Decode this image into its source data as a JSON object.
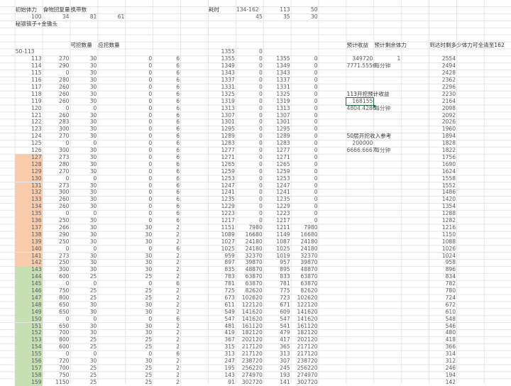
{
  "top": {
    "labels": [
      "初始体力",
      "食物回复量",
      "携带数"
    ],
    "values": [
      "100",
      "34",
      "81",
      "61"
    ],
    "tool": "秘银镐子+金锄头",
    "time_label": "耗时",
    "time_header": [
      "134-162",
      "113",
      "50"
    ],
    "time_values": [
      "45",
      "35",
      "30"
    ]
  },
  "headers": {
    "mineable": "可挖数量",
    "should_mine": "应挖数量",
    "range_label": "50-113",
    "range_stamina": "1355",
    "range_income": "0",
    "expected_income": "预计收益",
    "expected_stamina": "预计剩余体力",
    "full_clear": "到达时剩多少体力可全清至162"
  },
  "notes": {
    "income_total": "349720",
    "stamina_flag": "1",
    "income_rate": "7771.5556",
    "per_minute": "每分钟",
    "start113_label": "113开挖预计收益",
    "start113_value": "168155",
    "start113_rate": "4804.4286",
    "start50_label": "50层开挖收入参考",
    "start50_value": "200000",
    "start50_rate": "6666.6667"
  },
  "colors": {
    "orange_band": "#f8cbad",
    "green_band": "#c6e0b4",
    "selection": "#217346"
  },
  "rows": [
    [
      "113",
      "270",
      "30",
      "0",
      "6",
      "1355",
      "0",
      "1355",
      "0",
      "2554"
    ],
    [
      "114",
      "290",
      "30",
      "0",
      "6",
      "1349",
      "0",
      "1349",
      "0",
      "2494"
    ],
    [
      "115",
      "0",
      "30",
      "0",
      "6",
      "1343",
      "0",
      "1343",
      "0",
      "2428"
    ],
    [
      "116",
      "280",
      "30",
      "0",
      "6",
      "1337",
      "0",
      "1337",
      "0",
      "2362"
    ],
    [
      "117",
      "260",
      "30",
      "0",
      "6",
      "1331",
      "0",
      "1331",
      "0",
      "2296"
    ],
    [
      "118",
      "260",
      "30",
      "0",
      "6",
      "1325",
      "0",
      "1325",
      "0",
      "2230"
    ],
    [
      "119",
      "260",
      "30",
      "0",
      "6",
      "1319",
      "0",
      "1319",
      "0",
      "2164"
    ],
    [
      "120",
      "0",
      "0",
      "0",
      "6",
      "1313",
      "0",
      "1313",
      "0",
      "2098"
    ],
    [
      "121",
      "260",
      "30",
      "0",
      "6",
      "1307",
      "0",
      "1307",
      "0",
      "2092"
    ],
    [
      "122",
      "283",
      "30",
      "0",
      "6",
      "1301",
      "0",
      "1301",
      "0",
      "2026"
    ],
    [
      "123",
      "300",
      "30",
      "0",
      "6",
      "1295",
      "0",
      "1295",
      "0",
      "1960"
    ],
    [
      "124",
      "270",
      "30",
      "0",
      "6",
      "1289",
      "0",
      "1289",
      "0",
      "1894"
    ],
    [
      "125",
      "0",
      "0",
      "0",
      "6",
      "1283",
      "0",
      "1283",
      "0",
      "1828"
    ],
    [
      "126",
      "300",
      "30",
      "0",
      "6",
      "1277",
      "0",
      "1277",
      "0",
      "1822"
    ],
    [
      "127",
      "273",
      "30",
      "0",
      "6",
      "1271",
      "0",
      "1271",
      "0",
      "1756"
    ],
    [
      "128",
      "280",
      "30",
      "0",
      "6",
      "1265",
      "0",
      "1265",
      "0",
      "1690"
    ],
    [
      "129",
      "270",
      "30",
      "0",
      "6",
      "1259",
      "0",
      "1259",
      "0",
      "1624"
    ],
    [
      "130",
      "0",
      "0",
      "0",
      "6",
      "1253",
      "0",
      "1253",
      "0",
      "1558"
    ],
    [
      "131",
      "273",
      "30",
      "0",
      "6",
      "1247",
      "0",
      "1247",
      "0",
      "1552"
    ],
    [
      "132",
      "300",
      "30",
      "0",
      "6",
      "1241",
      "0",
      "1241",
      "0",
      "1486"
    ],
    [
      "133",
      "260",
      "30",
      "0",
      "6",
      "1235",
      "0",
      "1235",
      "0",
      "1420"
    ],
    [
      "134",
      "260",
      "30",
      "0",
      "6",
      "1229",
      "0",
      "1229",
      "0",
      "1354"
    ],
    [
      "135",
      "0",
      "0",
      "0",
      "6",
      "1223",
      "0",
      "1223",
      "0",
      "1288"
    ],
    [
      "136",
      "250",
      "30",
      "0",
      "6",
      "1217",
      "0",
      "1217",
      "0",
      "1282"
    ],
    [
      "137",
      "266",
      "30",
      "30",
      "2",
      "1151",
      "7980",
      "1211",
      "7980",
      "1216"
    ],
    [
      "138",
      "290",
      "30",
      "30",
      "2",
      "1089",
      "16680",
      "1149",
      "16680",
      "1150"
    ],
    [
      "139",
      "250",
      "30",
      "30",
      "2",
      "1027",
      "24180",
      "1087",
      "24180",
      "1088"
    ],
    [
      "140",
      "0",
      "0",
      "0",
      "6",
      "1025",
      "24180",
      "1025",
      "24180",
      "1026"
    ],
    [
      "141",
      "273",
      "30",
      "30",
      "2",
      "959",
      "32370",
      "1019",
      "32370",
      "1024"
    ],
    [
      "142",
      "250",
      "30",
      "30",
      "2",
      "897",
      "39870",
      "957",
      "39870",
      "958"
    ],
    [
      "143",
      "300",
      "30",
      "30",
      "2",
      "835",
      "48870",
      "895",
      "48870",
      "896"
    ],
    [
      "144",
      "600",
      "25",
      "25",
      "2",
      "783",
      "63870",
      "833",
      "63870",
      "834"
    ],
    [
      "145",
      "0",
      "0",
      "0",
      "6",
      "781",
      "63870",
      "781",
      "63870",
      "782"
    ],
    [
      "146",
      "750",
      "25",
      "25",
      "2",
      "725",
      "82620",
      "775",
      "82620",
      "780"
    ],
    [
      "147",
      "800",
      "25",
      "25",
      "2",
      "673",
      "102620",
      "723",
      "102620",
      "724"
    ],
    [
      "148",
      "650",
      "30",
      "30",
      "2",
      "611",
      "122120",
      "671",
      "122120",
      "672"
    ],
    [
      "149",
      "650",
      "30",
      "30",
      "2",
      "549",
      "141620",
      "609",
      "141620",
      "610"
    ],
    [
      "150",
      "0",
      "0",
      "0",
      "6",
      "547",
      "141620",
      "547",
      "141620",
      "548"
    ],
    [
      "151",
      "650",
      "30",
      "30",
      "2",
      "481",
      "161120",
      "541",
      "161120",
      "546"
    ],
    [
      "152",
      "700",
      "30",
      "30",
      "2",
      "419",
      "182120",
      "479",
      "182120",
      "480"
    ],
    [
      "153",
      "800",
      "25",
      "25",
      "2",
      "367",
      "202120",
      "417",
      "202120",
      "418"
    ],
    [
      "154",
      "600",
      "25",
      "25",
      "2",
      "315",
      "217120",
      "365",
      "217120",
      "366"
    ],
    [
      "155",
      "0",
      "0",
      "0",
      "6",
      "313",
      "217120",
      "313",
      "217120",
      "314"
    ],
    [
      "156",
      "720",
      "30",
      "30",
      "2",
      "247",
      "238720",
      "307",
      "238720",
      "312"
    ],
    [
      "157",
      "700",
      "25",
      "25",
      "2",
      "195",
      "256220",
      "245",
      "256220",
      "246"
    ],
    [
      "158",
      "750",
      "25",
      "25",
      "2",
      "143",
      "274970",
      "193",
      "274970",
      "194"
    ],
    [
      "159",
      "1150",
      "25",
      "25",
      "2",
      "91",
      "302720",
      "141",
      "302720",
      "142"
    ]
  ]
}
